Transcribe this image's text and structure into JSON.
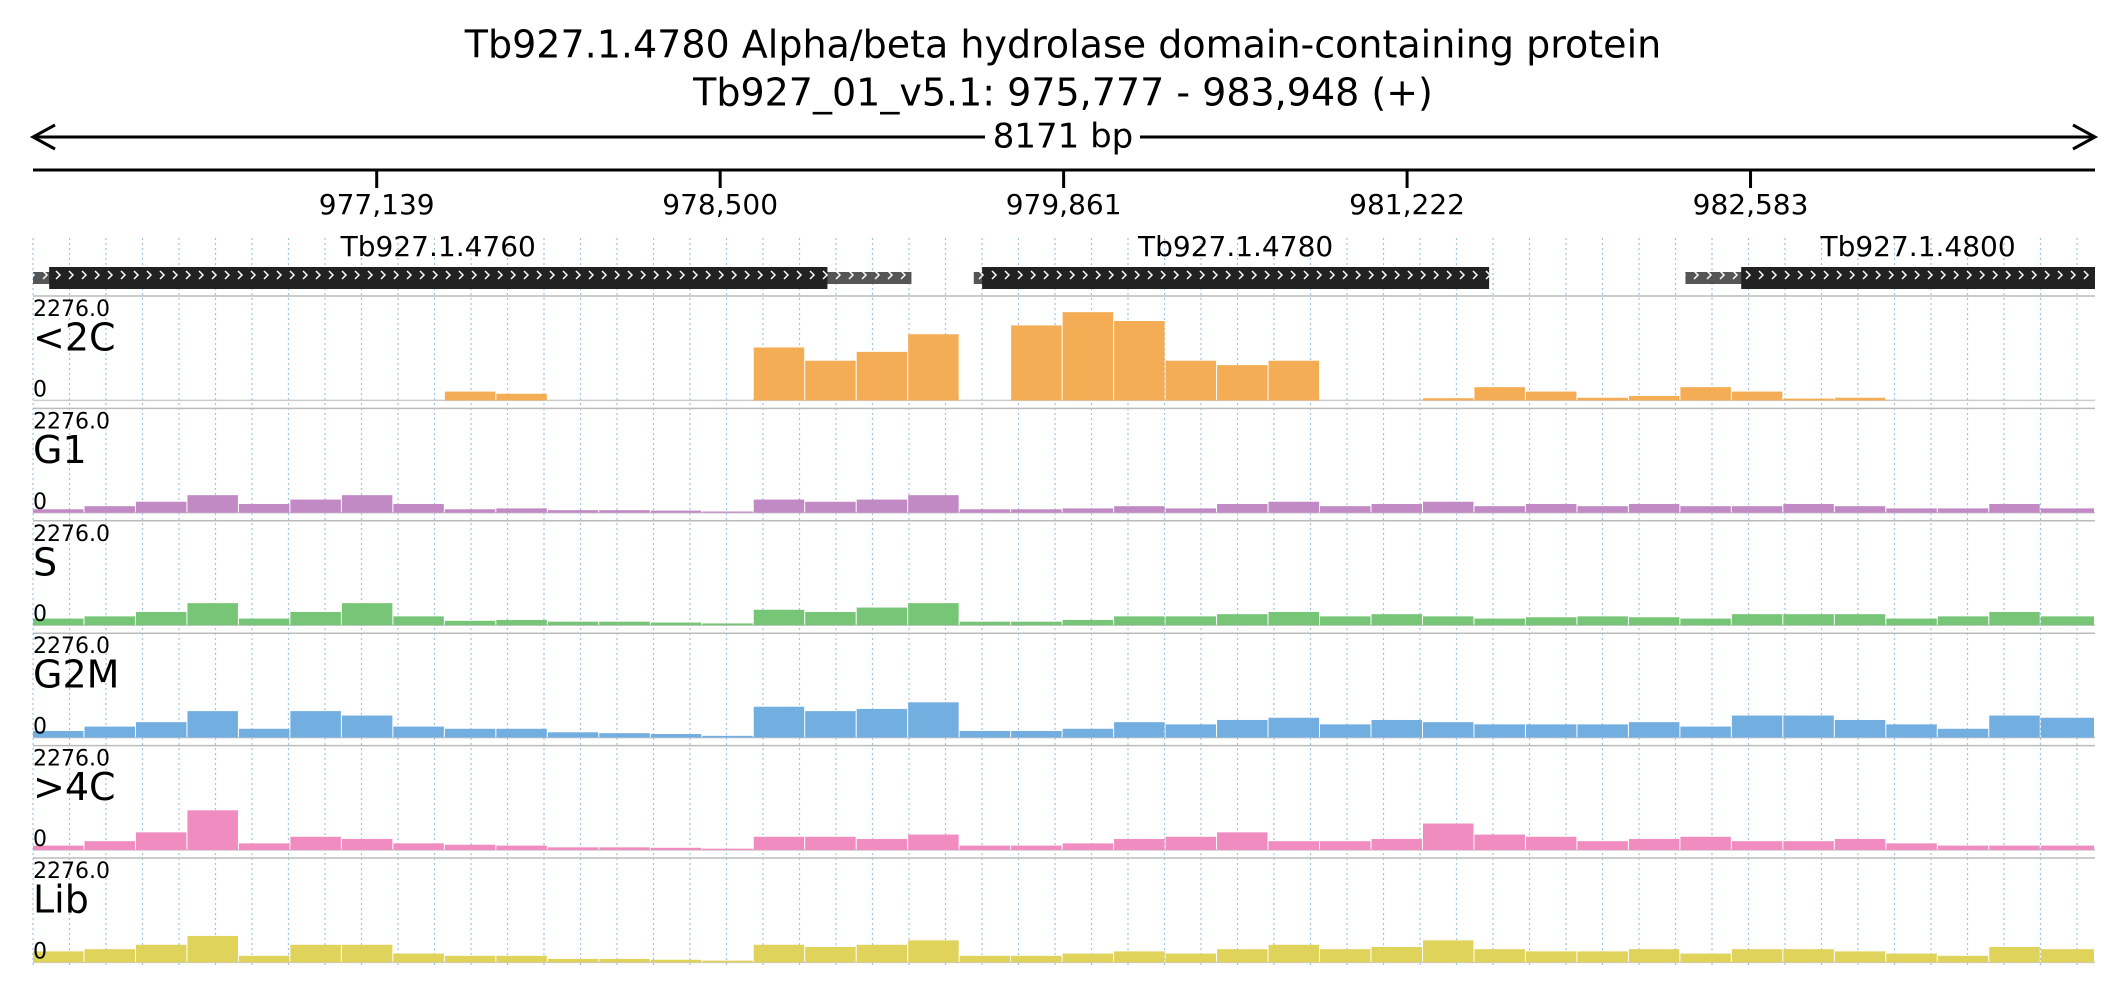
{
  "chart_data": {
    "type": "coverage",
    "title": "Tb927.1.4780  Alpha/beta hydrolase domain-containing protein",
    "subtitle": "Tb927_01_v5.1: 975,777 - 983,948 (+)",
    "span_label": "8171 bp",
    "xlim": [
      975777,
      983948
    ],
    "xticks": [
      {
        "value": 977139,
        "label": "977,139"
      },
      {
        "value": 978500,
        "label": "978,500"
      },
      {
        "value": 979861,
        "label": "979,861"
      },
      {
        "value": 981222,
        "label": "981,222"
      },
      {
        "value": 982583,
        "label": "982,583"
      }
    ],
    "genes": [
      {
        "name": "Tb927.1.4760",
        "start": 975777,
        "end": 979258,
        "cds_start": 975841,
        "cds_end": 978925
      },
      {
        "name": "Tb927.1.4780",
        "start": 979505,
        "end": 981547,
        "cds_start": 979538,
        "cds_end": 981547
      },
      {
        "name": "Tb927.1.4800",
        "start": 982325,
        "end": 983948,
        "cds_start": 982546,
        "cds_end": 983948
      }
    ],
    "bins": [
      975777,
      975981,
      976185,
      976389,
      976593,
      976797,
      977001,
      977205,
      977409,
      977613,
      977817,
      978021,
      978225,
      978429,
      978633,
      978837,
      979041,
      979245,
      979449,
      979653,
      979857,
      980061,
      980265,
      980469,
      980673,
      980877,
      981081,
      981285,
      981489,
      981693,
      981897,
      982101,
      982305,
      982509,
      982713,
      982917,
      983121,
      983325,
      983529,
      983733,
      983948
    ],
    "tracks": [
      {
        "name": "<2C",
        "color": "#f5ad55",
        "ylim": [
          0,
          2276
        ],
        "yticks": [
          0,
          {
            "value": 2276,
            "label": "2276.0"
          }
        ],
        "values": [
          0,
          0,
          0,
          0,
          0,
          0,
          0,
          0,
          200,
          150,
          0,
          0,
          0,
          0,
          1200,
          900,
          1100,
          1500,
          0,
          1700,
          2000,
          1800,
          900,
          800,
          900,
          0,
          0,
          50,
          300,
          200,
          60,
          100,
          300,
          200,
          40,
          60,
          0,
          0,
          0,
          0
        ]
      },
      {
        "name": "G1",
        "color": "#c18ac4",
        "ylim": [
          0,
          2276
        ],
        "yticks": [
          0,
          {
            "value": 2276,
            "label": "2276.0"
          }
        ],
        "values": [
          80,
          150,
          250,
          400,
          200,
          300,
          400,
          200,
          80,
          100,
          60,
          60,
          50,
          30,
          300,
          250,
          300,
          400,
          80,
          80,
          100,
          150,
          100,
          200,
          250,
          150,
          200,
          250,
          150,
          200,
          150,
          200,
          150,
          150,
          200,
          150,
          100,
          100,
          200,
          100
        ]
      },
      {
        "name": "S",
        "color": "#77c677",
        "ylim": [
          0,
          2276
        ],
        "yticks": [
          0,
          {
            "value": 2276,
            "label": "2276.0"
          }
        ],
        "values": [
          150,
          200,
          300,
          500,
          150,
          300,
          500,
          200,
          100,
          120,
          80,
          80,
          60,
          40,
          350,
          300,
          400,
          500,
          80,
          80,
          120,
          200,
          200,
          250,
          300,
          200,
          250,
          200,
          150,
          180,
          200,
          180,
          150,
          250,
          250,
          250,
          150,
          200,
          300,
          200
        ]
      },
      {
        "name": "G2M",
        "color": "#72aee0",
        "ylim": [
          0,
          2276
        ],
        "yticks": [
          0,
          {
            "value": 2276,
            "label": "2276.0"
          }
        ],
        "values": [
          150,
          250,
          350,
          600,
          200,
          600,
          500,
          250,
          200,
          200,
          120,
          100,
          80,
          40,
          700,
          600,
          650,
          800,
          150,
          150,
          200,
          350,
          300,
          400,
          450,
          300,
          400,
          350,
          300,
          300,
          300,
          350,
          250,
          500,
          500,
          400,
          300,
          200,
          500,
          450
        ]
      },
      {
        "name": ">4C",
        "color": "#f08cbf",
        "ylim": [
          0,
          2276
        ],
        "yticks": [
          0,
          {
            "value": 2276,
            "label": "2276.0"
          }
        ],
        "values": [
          100,
          200,
          400,
          900,
          150,
          300,
          250,
          150,
          120,
          100,
          60,
          60,
          50,
          30,
          300,
          300,
          250,
          350,
          100,
          100,
          150,
          250,
          300,
          400,
          200,
          200,
          250,
          600,
          350,
          300,
          200,
          250,
          300,
          200,
          200,
          250,
          150,
          100,
          100,
          100
        ]
      },
      {
        "name": "Lib",
        "color": "#e0d35c",
        "ylim": [
          0,
          2276
        ],
        "yticks": [
          0,
          {
            "value": 2276,
            "label": "2276.0"
          }
        ],
        "values": [
          250,
          300,
          400,
          600,
          150,
          400,
          400,
          200,
          150,
          150,
          80,
          80,
          60,
          40,
          400,
          350,
          400,
          500,
          150,
          150,
          200,
          250,
          200,
          300,
          400,
          300,
          350,
          500,
          300,
          250,
          250,
          300,
          200,
          300,
          300,
          250,
          200,
          150,
          350,
          300
        ]
      }
    ]
  }
}
